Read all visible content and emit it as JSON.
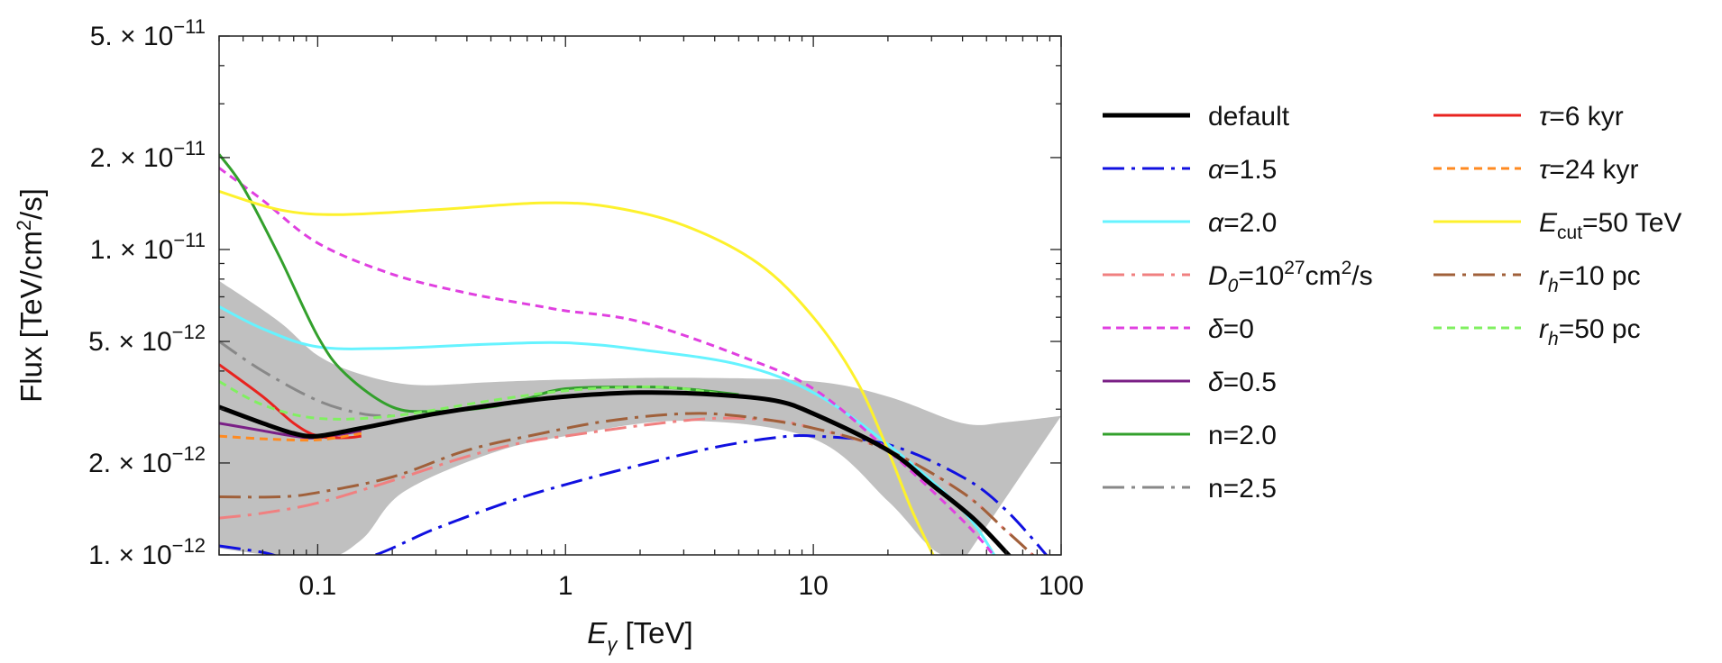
{
  "chart_data": {
    "type": "line",
    "xscale": "log",
    "yscale": "log",
    "xlim": [
      0.04,
      100
    ],
    "ylim": [
      1e-12,
      5e-11
    ],
    "xlabel": {
      "main": "E",
      "sub": "γ",
      "unit": " [TeV]"
    },
    "ylabel": {
      "pre": "Flux [TeV/cm",
      "sup": "2",
      "post": "/s]"
    },
    "x_tick_labels": [
      {
        "value": 0.1,
        "label": "0.1"
      },
      {
        "value": 1,
        "label": "1"
      },
      {
        "value": 10,
        "label": "10"
      },
      {
        "value": 100,
        "label": "100"
      }
    ],
    "y_tick_labels": [
      {
        "value": 1e-12,
        "mant": "1.",
        "exp": "−12"
      },
      {
        "value": 2e-12,
        "mant": "2.",
        "exp": "−12"
      },
      {
        "value": 5e-12,
        "mant": "5.",
        "exp": "−12"
      },
      {
        "value": 1e-11,
        "mant": "1.",
        "exp": "−11"
      },
      {
        "value": 2e-11,
        "mant": "2.",
        "exp": "−11"
      },
      {
        "value": 5e-11,
        "mant": "5.",
        "exp": "−11"
      }
    ],
    "y_tick_base": " × 10",
    "band": {
      "color": "#c0c0c0",
      "upper": [
        [
          0.04,
          7.9e-12
        ],
        [
          0.07,
          5.8e-12
        ],
        [
          0.1,
          4.5e-12
        ],
        [
          0.15,
          3.9e-12
        ],
        [
          0.25,
          3.6e-12
        ],
        [
          0.5,
          3.68e-12
        ],
        [
          1,
          3.75e-12
        ],
        [
          3,
          3.8e-12
        ],
        [
          10,
          3.7e-12
        ],
        [
          20,
          3.3e-12
        ],
        [
          40,
          2.7e-12
        ],
        [
          60,
          2.72e-12
        ],
        [
          100,
          2.85e-12
        ]
      ],
      "lower": [
        [
          0.04,
          1.05e-12
        ],
        [
          0.1,
          9.7e-13
        ],
        [
          0.15,
          1.12e-12
        ],
        [
          0.22,
          1.6e-12
        ],
        [
          0.5,
          2.15e-12
        ],
        [
          1,
          2.45e-12
        ],
        [
          3,
          2.75e-12
        ],
        [
          10,
          2.4e-12
        ],
        [
          20,
          1.5e-12
        ],
        [
          30,
          1.05e-12
        ],
        [
          40,
          9.5e-13
        ]
      ]
    },
    "series": [
      {
        "name": "default",
        "label": "default",
        "color": "#000000",
        "dash": "",
        "width": 5,
        "points": [
          [
            0.04,
            3.05e-12
          ],
          [
            0.06,
            2.7e-12
          ],
          [
            0.08,
            2.5e-12
          ],
          [
            0.1,
            2.45e-12
          ],
          [
            0.15,
            2.6e-12
          ],
          [
            0.3,
            2.9e-12
          ],
          [
            0.6,
            3.15e-12
          ],
          [
            1,
            3.3e-12
          ],
          [
            2,
            3.4e-12
          ],
          [
            4,
            3.35e-12
          ],
          [
            7,
            3.2e-12
          ],
          [
            10,
            2.9e-12
          ],
          [
            20,
            2.2e-12
          ],
          [
            30,
            1.7e-12
          ],
          [
            45,
            1.3e-12
          ],
          [
            65,
            9.5e-13
          ]
        ]
      },
      {
        "name": "alpha-1.5",
        "label": "α=1.5",
        "color": "#1010e0",
        "dash": "24 8 4 8",
        "width": 3,
        "points": [
          [
            0.04,
            1.07e-12
          ],
          [
            0.06,
            1.02e-12
          ],
          [
            0.08,
            9.7e-13
          ],
          [
            0.15,
            9.7e-13
          ],
          [
            0.3,
            1.22e-12
          ],
          [
            0.6,
            1.5e-12
          ],
          [
            1,
            1.7e-12
          ],
          [
            2,
            1.97e-12
          ],
          [
            4,
            2.25e-12
          ],
          [
            7,
            2.42e-12
          ],
          [
            10,
            2.45e-12
          ],
          [
            20,
            2.3e-12
          ],
          [
            40,
            1.8e-12
          ],
          [
            60,
            1.4e-12
          ],
          [
            90,
            9.7e-13
          ]
        ]
      },
      {
        "name": "alpha-2.0",
        "label": "α=2.0",
        "color": "#66f3ff",
        "dash": "",
        "width": 3,
        "points": [
          [
            0.04,
            6.5e-12
          ],
          [
            0.06,
            5.5e-12
          ],
          [
            0.1,
            4.8e-12
          ],
          [
            0.2,
            4.75e-12
          ],
          [
            0.5,
            4.9e-12
          ],
          [
            1,
            4.95e-12
          ],
          [
            2,
            4.7e-12
          ],
          [
            5,
            4.2e-12
          ],
          [
            10,
            3.4e-12
          ],
          [
            20,
            2.3e-12
          ],
          [
            40,
            1.4e-12
          ],
          [
            55,
            9.7e-13
          ]
        ]
      },
      {
        "name": "D0",
        "label": "D0",
        "labelSub": "0",
        "labelMid": "=10",
        "labelSup": "27",
        "labelEnd": "cm",
        "labelSup2": "2",
        "labelTail": "/s",
        "color": "#f08080",
        "dash": "24 8 4 8",
        "width": 3,
        "points": [
          [
            0.04,
            1.32e-12
          ],
          [
            0.06,
            1.37e-12
          ],
          [
            0.1,
            1.48e-12
          ],
          [
            0.2,
            1.75e-12
          ],
          [
            0.4,
            2.1e-12
          ],
          [
            0.7,
            2.35e-12
          ],
          [
            1,
            2.45e-12
          ],
          [
            2,
            2.65e-12
          ],
          [
            4,
            2.8e-12
          ],
          [
            7,
            2.75e-12
          ],
          [
            10,
            2.6e-12
          ],
          [
            20,
            2.2e-12
          ],
          [
            40,
            1.6e-12
          ],
          [
            60,
            1.2e-12
          ],
          [
            80,
            9.7e-13
          ]
        ]
      },
      {
        "name": "delta-0",
        "label": "δ=0",
        "color": "#e040e0",
        "dash": "9 6",
        "width": 3,
        "points": [
          [
            0.04,
            1.85e-11
          ],
          [
            0.06,
            1.45e-11
          ],
          [
            0.1,
            1.05e-11
          ],
          [
            0.2,
            8.3e-12
          ],
          [
            0.4,
            7.2e-12
          ],
          [
            0.8,
            6.5e-12
          ],
          [
            1,
            6.3e-12
          ],
          [
            2,
            5.8e-12
          ],
          [
            5,
            4.5e-12
          ],
          [
            10,
            3.5e-12
          ],
          [
            20,
            2.2e-12
          ],
          [
            40,
            1.3e-12
          ],
          [
            55,
            9.7e-13
          ]
        ]
      },
      {
        "name": "delta-0.5",
        "label": "δ=0.5",
        "color": "#7a1f86",
        "dash": "",
        "width": 3,
        "points": [
          [
            0.04,
            2.7e-12
          ],
          [
            0.06,
            2.55e-12
          ],
          [
            0.08,
            2.45e-12
          ],
          [
            0.1,
            2.42e-12
          ],
          [
            0.15,
            2.55e-12
          ]
        ]
      },
      {
        "name": "n-2.0",
        "label": "n=2.0",
        "color": "#33a02c",
        "dash": "",
        "width": 3,
        "points": [
          [
            0.04,
            2.05e-11
          ],
          [
            0.05,
            1.6e-11
          ],
          [
            0.07,
            9.5e-12
          ],
          [
            0.1,
            5.2e-12
          ],
          [
            0.13,
            3.9e-12
          ],
          [
            0.2,
            3.05e-12
          ],
          [
            0.3,
            2.95e-12
          ],
          [
            0.5,
            3.05e-12
          ],
          [
            0.7,
            3.25e-12
          ],
          [
            1,
            3.5e-12
          ],
          [
            2,
            3.55e-12
          ],
          [
            3,
            3.5e-12
          ],
          [
            5,
            3.35e-12
          ]
        ]
      },
      {
        "name": "n-2.5",
        "label": "n=2.5",
        "color": "#888888",
        "dash": "24 8 4 8",
        "width": 3,
        "points": [
          [
            0.04,
            5e-12
          ],
          [
            0.06,
            4e-12
          ],
          [
            0.1,
            3.2e-12
          ],
          [
            0.15,
            2.9e-12
          ],
          [
            0.2,
            2.85e-12
          ]
        ]
      },
      {
        "name": "tau-6",
        "label": "τ=6 kyr",
        "color": "#e8231f",
        "dash": "",
        "width": 3,
        "points": [
          [
            0.04,
            4.2e-12
          ],
          [
            0.06,
            3.3e-12
          ],
          [
            0.08,
            2.7e-12
          ],
          [
            0.1,
            2.45e-12
          ],
          [
            0.13,
            2.42e-12
          ],
          [
            0.15,
            2.45e-12
          ]
        ]
      },
      {
        "name": "tau-24",
        "label": "τ=24 kyr",
        "color": "#ff8a20",
        "dash": "9 6",
        "width": 3,
        "points": [
          [
            0.04,
            2.45e-12
          ],
          [
            0.06,
            2.4e-12
          ],
          [
            0.1,
            2.38e-12
          ],
          [
            0.15,
            2.5e-12
          ]
        ]
      },
      {
        "name": "Ecut-50",
        "label": "Ecut",
        "labelSub": "cut",
        "labelMid": "=50 TeV",
        "color": "#fdf12c",
        "dash": "",
        "width": 3,
        "points": [
          [
            0.04,
            1.55e-11
          ],
          [
            0.07,
            1.35e-11
          ],
          [
            0.12,
            1.3e-11
          ],
          [
            0.3,
            1.35e-11
          ],
          [
            0.8,
            1.42e-11
          ],
          [
            1.5,
            1.38e-11
          ],
          [
            3,
            1.2e-11
          ],
          [
            6,
            9e-12
          ],
          [
            10,
            6e-12
          ],
          [
            15,
            3.7e-12
          ],
          [
            20,
            2.2e-12
          ],
          [
            25,
            1.4e-12
          ],
          [
            31,
            9.7e-13
          ]
        ]
      },
      {
        "name": "rh-10",
        "label": "rh",
        "labelSub": "h",
        "labelMid": "=10 pc",
        "color": "#a0603a",
        "dash": "24 8 4 8",
        "width": 3,
        "points": [
          [
            0.04,
            1.55e-12
          ],
          [
            0.07,
            1.55e-12
          ],
          [
            0.1,
            1.6e-12
          ],
          [
            0.2,
            1.8e-12
          ],
          [
            0.4,
            2.2e-12
          ],
          [
            0.8,
            2.5e-12
          ],
          [
            1.5,
            2.75e-12
          ],
          [
            3,
            2.9e-12
          ],
          [
            5,
            2.85e-12
          ],
          [
            10,
            2.6e-12
          ],
          [
            20,
            2.2e-12
          ],
          [
            40,
            1.6e-12
          ],
          [
            60,
            1.2e-12
          ],
          [
            80,
            9.7e-13
          ]
        ]
      },
      {
        "name": "rh-50",
        "label": "rh",
        "labelSub": "h",
        "labelMid": "=50 pc",
        "color": "#80f060",
        "dash": "9 6",
        "width": 3,
        "points": [
          [
            0.04,
            3.7e-12
          ],
          [
            0.06,
            3.1e-12
          ],
          [
            0.1,
            2.8e-12
          ],
          [
            0.2,
            2.85e-12
          ],
          [
            0.5,
            3.2e-12
          ],
          [
            1,
            3.45e-12
          ],
          [
            2,
            3.55e-12
          ],
          [
            3,
            3.5e-12
          ],
          [
            5,
            3.3e-12
          ]
        ]
      }
    ]
  }
}
